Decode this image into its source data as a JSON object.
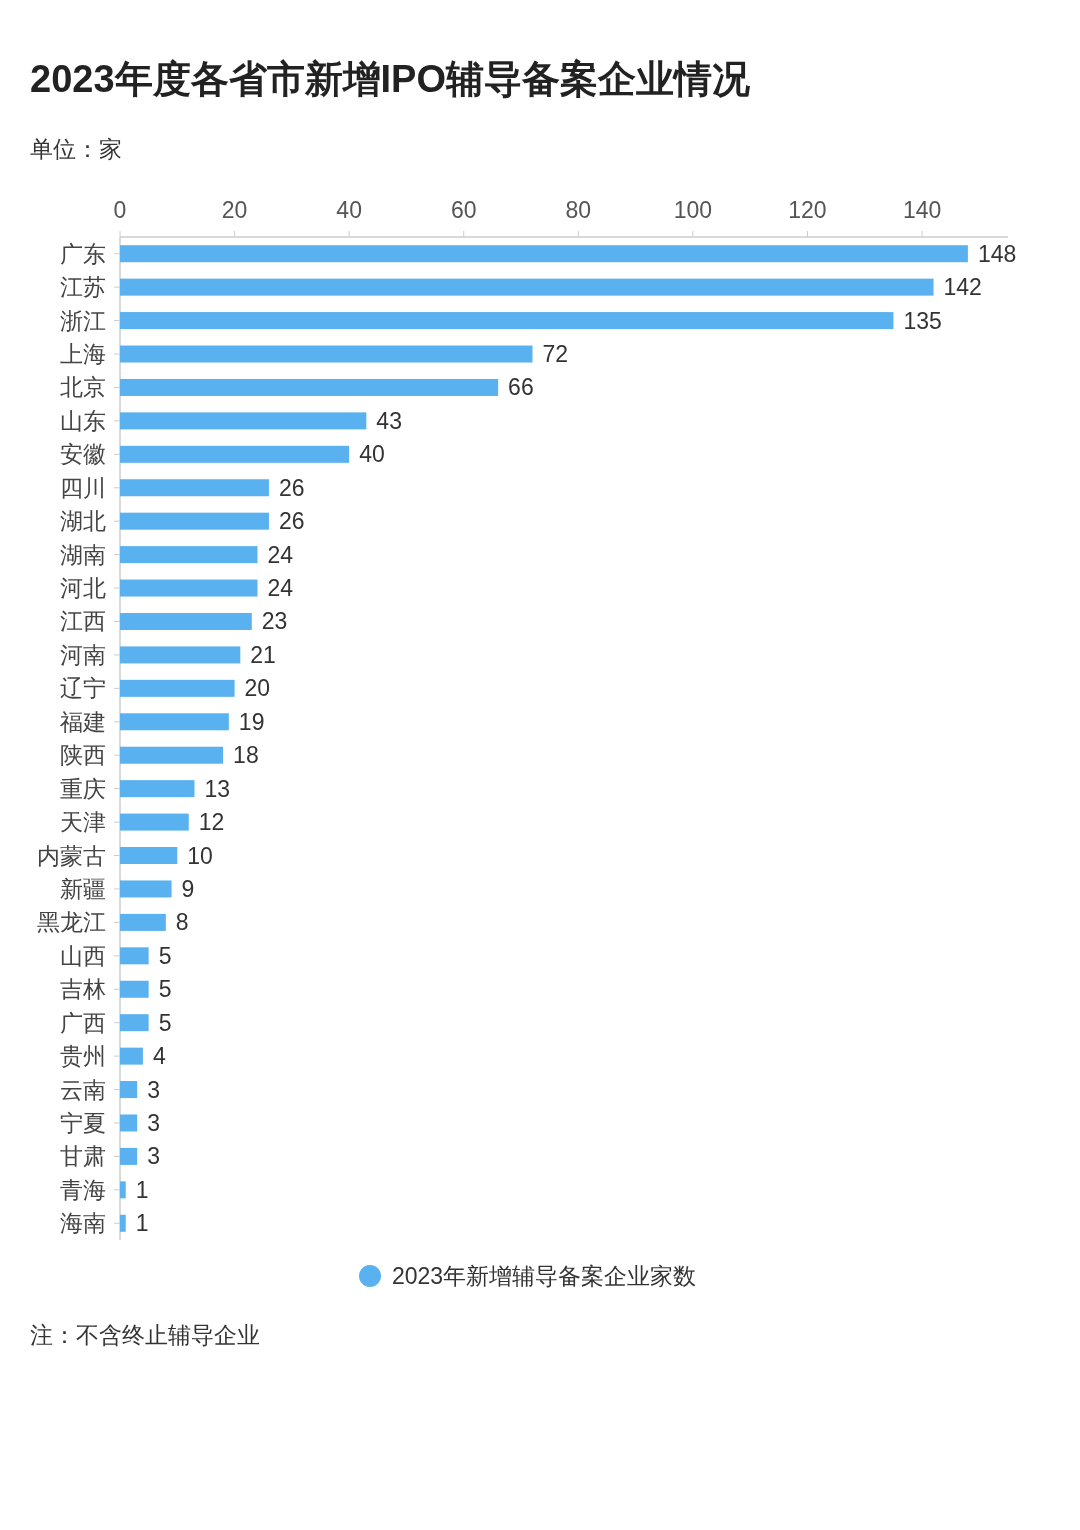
{
  "chart_data": {
    "type": "bar",
    "orientation": "horizontal",
    "title": "2023年度各省市新增IPO辅导备案企业情况",
    "subtitle": "单位：家",
    "categories": [
      "广东",
      "江苏",
      "浙江",
      "上海",
      "北京",
      "山东",
      "安徽",
      "四川",
      "湖北",
      "湖南",
      "河北",
      "江西",
      "河南",
      "辽宁",
      "福建",
      "陕西",
      "重庆",
      "天津",
      "内蒙古",
      "新疆",
      "黑龙江",
      "山西",
      "吉林",
      "广西",
      "贵州",
      "云南",
      "宁夏",
      "甘肃",
      "青海",
      "海南"
    ],
    "series": [
      {
        "name": "2023年新增辅导备案企业家数",
        "color": "#5ab1ef",
        "values": [
          148,
          142,
          135,
          72,
          66,
          43,
          40,
          26,
          26,
          24,
          24,
          23,
          21,
          20,
          19,
          18,
          13,
          12,
          10,
          9,
          8,
          5,
          5,
          5,
          4,
          3,
          3,
          3,
          1,
          1
        ]
      }
    ],
    "xlim": [
      0,
      155
    ],
    "xticks": [
      0,
      20,
      40,
      60,
      80,
      100,
      120,
      140
    ],
    "data_labels": true,
    "legend": "bottom",
    "annotations": [
      "注：不含终止辅导企业"
    ]
  }
}
